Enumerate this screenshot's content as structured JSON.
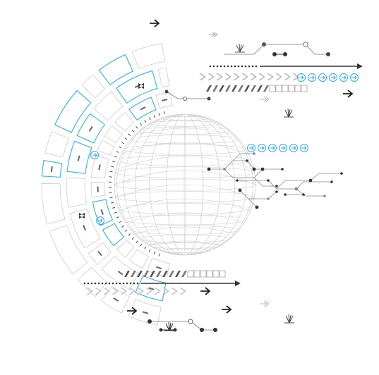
{
  "illustration": {
    "subject": "tech-hud-globe",
    "palette": {
      "background": "#ffffff",
      "ink": "#333333",
      "mid_gray": "#888888",
      "light_gray": "#bfbfbf",
      "pale_gray": "#d9d9d9",
      "accent": "#35a9dc",
      "accent_pale": "#9bd3ee"
    },
    "icons": [
      "arrow-right-icon",
      "double-arrow-icon",
      "circle-arrow-icon",
      "chevron-icon",
      "burst-icon",
      "node-icon"
    ]
  }
}
